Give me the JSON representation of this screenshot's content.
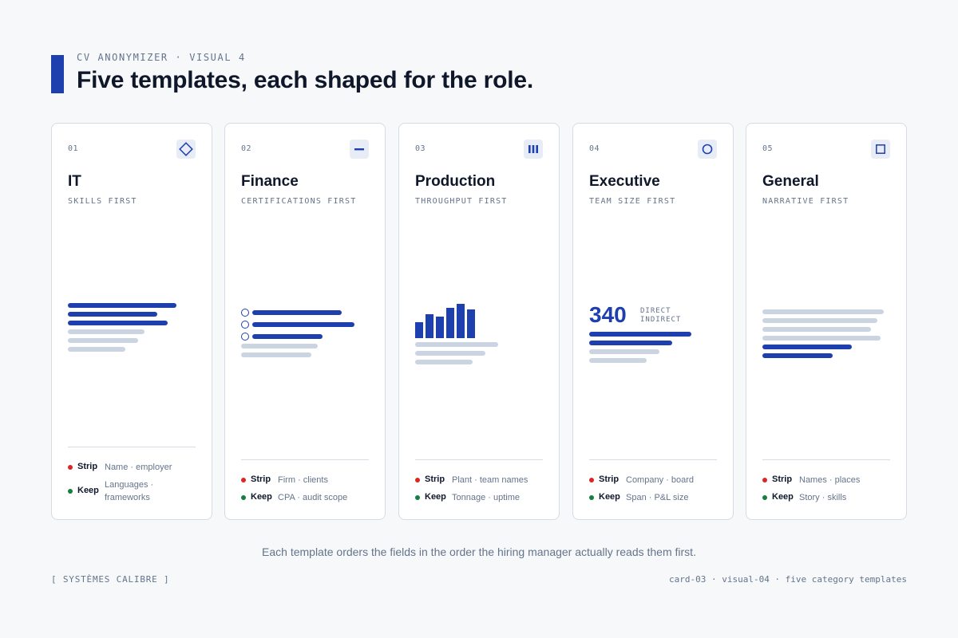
{
  "header": {
    "eyebrow": "CV ANONYMIZER · VISUAL 4",
    "title": "Five templates, each shaped for the role."
  },
  "colors": {
    "accent": "#1e40af",
    "strip": "#dc2626",
    "keep": "#15803d",
    "muted": "#cbd5e1"
  },
  "cards": [
    {
      "number": "01",
      "icon": "diamond-icon",
      "title": "IT",
      "subtitle": "SKILLS FIRST",
      "strip_label": "Strip",
      "strip_value": "Name · employer",
      "keep_label": "Keep",
      "keep_value": "Languages · frameworks"
    },
    {
      "number": "02",
      "icon": "minus-icon",
      "title": "Finance",
      "subtitle": "CERTIFICATIONS FIRST",
      "strip_label": "Strip",
      "strip_value": "Firm · clients",
      "keep_label": "Keep",
      "keep_value": "CPA · audit scope"
    },
    {
      "number": "03",
      "icon": "bars-icon",
      "title": "Production",
      "subtitle": "THROUGHPUT FIRST",
      "strip_label": "Strip",
      "strip_value": "Plant · team names",
      "keep_label": "Keep",
      "keep_value": "Tonnage · uptime"
    },
    {
      "number": "04",
      "icon": "circle-icon",
      "title": "Executive",
      "subtitle": "TEAM SIZE FIRST",
      "big_number": "340",
      "big_caption_1": "DIRECT",
      "big_caption_2": "INDIRECT",
      "strip_label": "Strip",
      "strip_value": "Company · board",
      "keep_label": "Keep",
      "keep_value": "Span · P&L size"
    },
    {
      "number": "05",
      "icon": "square-icon",
      "title": "General",
      "subtitle": "NARRATIVE FIRST",
      "strip_label": "Strip",
      "strip_value": "Names · places",
      "keep_label": "Keep",
      "keep_value": "Story · skills"
    }
  ],
  "caption": "Each template orders the fields in the order the hiring manager actually reads them first.",
  "footer": {
    "left": "[ SYSTÈMES CALIBRE ]",
    "right": "card-03 · visual-04 · five category templates"
  }
}
